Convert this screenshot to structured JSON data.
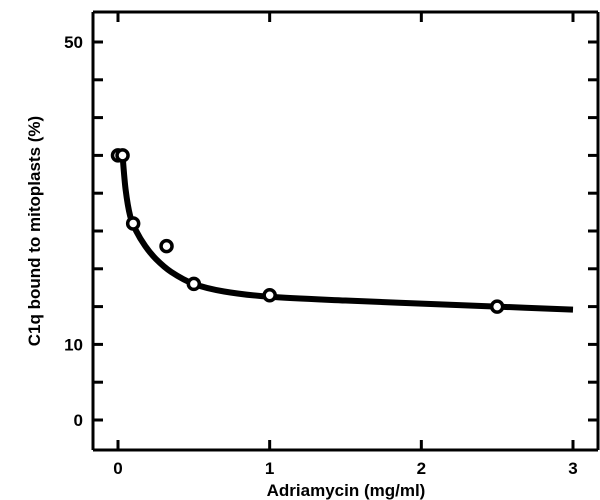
{
  "chart_data": {
    "type": "scatter",
    "xlabel": "Adriamycin (mg/ml)",
    "ylabel": "C1q bound to mitoplasts (%)",
    "xlim": [
      -0.1,
      3.1
    ],
    "ylim": [
      -2.5,
      52.5
    ],
    "x_ticks": [
      0,
      1,
      2,
      3
    ],
    "x_tick_labels": [
      "0",
      "1",
      "2",
      "3"
    ],
    "y_ticks": [
      0,
      5,
      10,
      15,
      20,
      25,
      30,
      35,
      40,
      45,
      50
    ],
    "y_tick_labels": {
      "0": "0",
      "10": "10",
      "50": "50"
    },
    "series": [
      {
        "marker": "open-circle",
        "color": "#000000",
        "x": [
          0,
          0.03,
          0.1,
          0.32,
          0.5,
          1.0,
          2.5
        ],
        "y": [
          35,
          35,
          26,
          23,
          18,
          16.5,
          15
        ]
      }
    ],
    "fit_curve": {
      "color": "#000000",
      "x": [
        0.03,
        0.05,
        0.08,
        0.12,
        0.18,
        0.25,
        0.35,
        0.5,
        0.7,
        1.0,
        1.5,
        2.0,
        2.5,
        3.0
      ],
      "y": [
        35,
        30.5,
        27,
        25,
        23,
        21.3,
        19.6,
        18,
        17,
        16.3,
        15.8,
        15.4,
        15.0,
        14.6
      ]
    },
    "grid": false
  }
}
